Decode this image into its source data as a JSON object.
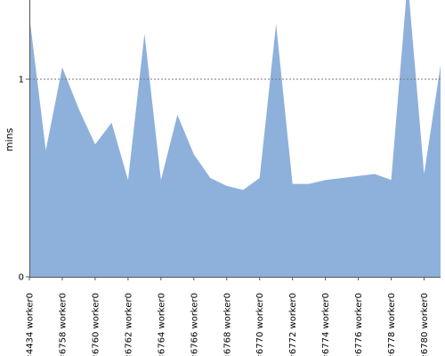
{
  "chart_data": {
    "type": "area",
    "title": "",
    "xlabel": "",
    "ylabel": "mins",
    "ylim": [
      0,
      1.4
    ],
    "yticks": [
      {
        "value": 0,
        "label": "0"
      },
      {
        "value": 1,
        "label": "1"
      }
    ],
    "reference_line": {
      "value": 1,
      "style": "dashed"
    },
    "grid": false,
    "legend": "none",
    "colors": {
      "area": "#8eb1db",
      "axis": "#555555",
      "reference_line": "#777777"
    },
    "x_labels_shown": [
      "#4434 worker0",
      "#6758 worker0",
      "#6760 worker0",
      "#6762 worker0",
      "#6764 worker0",
      "#6766 worker0",
      "#6768 worker0",
      "#6770 worker0",
      "#6772 worker0",
      "#6774 worker0",
      "#6776 worker0",
      "#6778 worker0",
      "#6780 worker0"
    ],
    "values": [
      1.32,
      0.64,
      1.06,
      0.85,
      0.67,
      0.78,
      0.49,
      1.23,
      0.49,
      0.82,
      0.62,
      0.5,
      0.46,
      0.44,
      0.5,
      1.28,
      0.47,
      0.47,
      0.49,
      0.5,
      0.51,
      0.52,
      0.49,
      1.5,
      0.52,
      1.07
    ]
  }
}
